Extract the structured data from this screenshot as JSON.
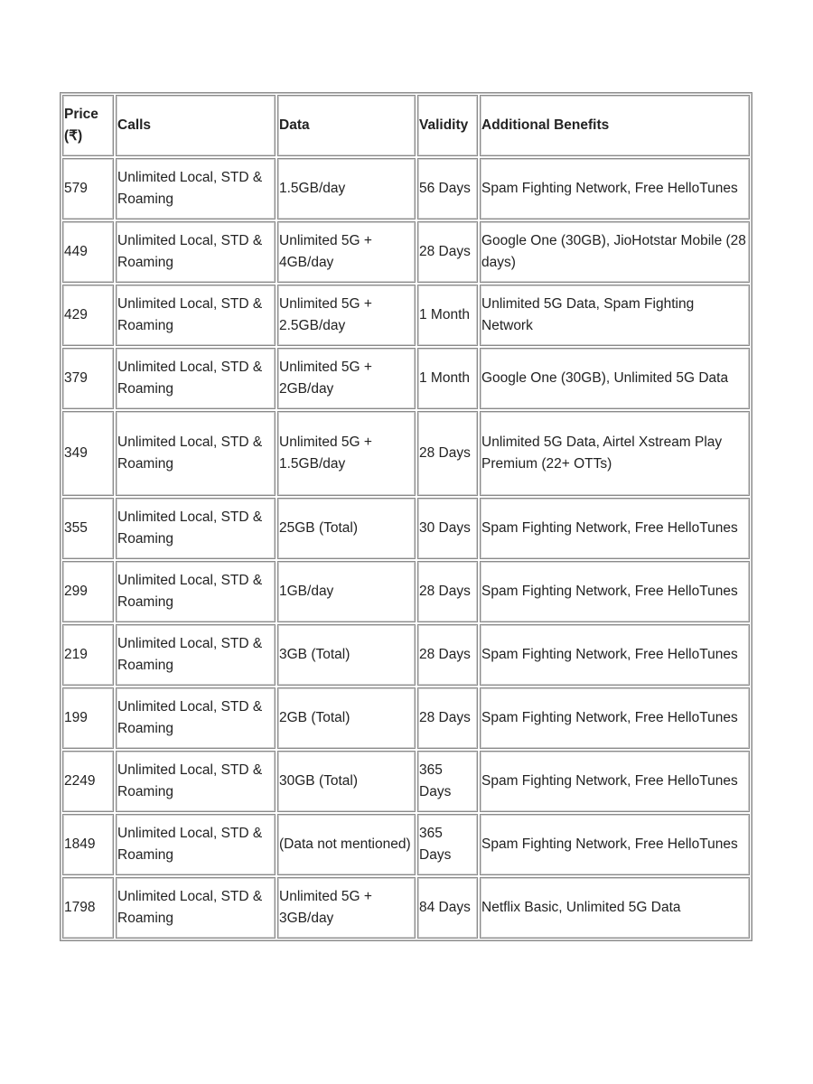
{
  "table": {
    "headers": [
      "Price (₹)",
      "Calls",
      "Data",
      "Validity",
      "Additional Benefits"
    ],
    "rows": [
      [
        "579",
        "Unlimited Local, STD & Roaming",
        "1.5GB/day",
        "56 Days",
        "Spam Fighting Network, Free HelloTunes"
      ],
      [
        "449",
        "Unlimited Local, STD & Roaming",
        "Unlimited 5G + 4GB/day",
        "28 Days",
        "Google One (30GB), JioHotstar Mobile (28 days)"
      ],
      [
        "429",
        "Unlimited Local, STD & Roaming",
        "Unlimited 5G + 2.5GB/day",
        "1 Month",
        "Unlimited 5G Data, Spam Fighting Network"
      ],
      [
        "379",
        "Unlimited Local, STD & Roaming",
        "Unlimited 5G + 2GB/day",
        "1 Month",
        "Google One (30GB), Unlimited 5G Data"
      ],
      [
        "349",
        "Unlimited Local, STD & Roaming",
        "Unlimited 5G + 1.5GB/day",
        "28 Days",
        "Unlimited 5G Data, Airtel Xstream Play Premium (22+ OTTs)"
      ],
      [
        "355",
        "Unlimited Local, STD & Roaming",
        "25GB (Total)",
        "30 Days",
        "Spam Fighting Network, Free HelloTunes"
      ],
      [
        "299",
        "Unlimited Local, STD & Roaming",
        "1GB/day",
        "28 Days",
        "Spam Fighting Network, Free HelloTunes"
      ],
      [
        "219",
        "Unlimited Local, STD & Roaming",
        "3GB (Total)",
        "28 Days",
        "Spam Fighting Network, Free HelloTunes"
      ],
      [
        "199",
        "Unlimited Local, STD & Roaming",
        "2GB (Total)",
        "28 Days",
        "Spam Fighting Network, Free HelloTunes"
      ],
      [
        "2249",
        "Unlimited Local, STD & Roaming",
        "30GB (Total)",
        "365 Days",
        "Spam Fighting Network, Free HelloTunes"
      ],
      [
        "1849",
        "Unlimited Local, STD & Roaming",
        "(Data not mentioned)",
        "365 Days",
        "Spam Fighting Network, Free HelloTunes"
      ],
      [
        "1798",
        "Unlimited Local, STD & Roaming",
        "Unlimited 5G + 3GB/day",
        "84 Days",
        "Netflix Basic, Unlimited 5G Data"
      ]
    ]
  }
}
